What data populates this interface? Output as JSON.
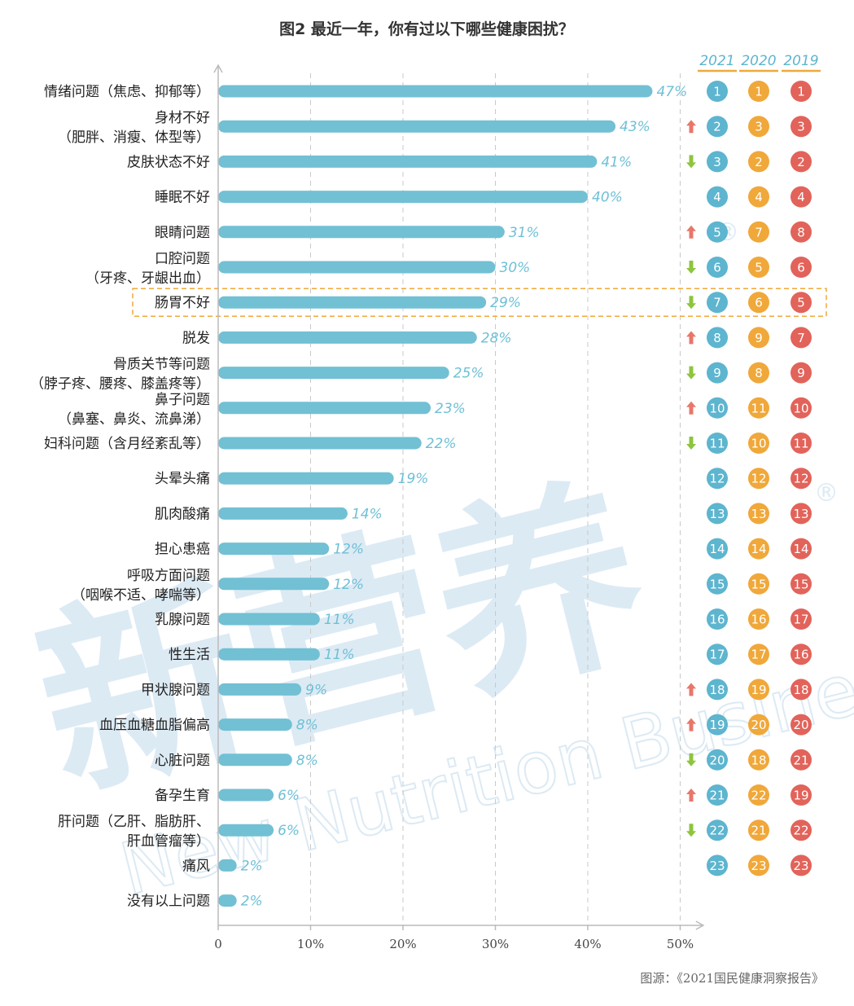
{
  "title": "图2 最近一年，你有过以下哪些健康困扰？",
  "source": "图源：《2021国民健康洞察报告》",
  "watermark": {
    "cn": "新营养",
    "en": "New Nutrition Business",
    "mark": "®"
  },
  "years": [
    "2021",
    "2020",
    "2019"
  ],
  "colors": {
    "bar": "#72c0d4",
    "value_label": "#6fc0d6",
    "rank_2021": "#5db5cf",
    "rank_2020": "#f0a83a",
    "rank_2019": "#e2635a",
    "header_underline": "#f0a83a",
    "arrow_up": "#e8776a",
    "arrow_down": "#8fc43d",
    "highlight_box": "#f0a83a",
    "grid": "#c9c9c9",
    "axis": "#bbbbbb"
  },
  "chart_data": {
    "type": "bar",
    "orientation": "horizontal",
    "title": "图2 最近一年，你有过以下哪些健康困扰？",
    "xlim": [
      0,
      50
    ],
    "xticks": [
      "0",
      "10%",
      "20%",
      "30%",
      "40%",
      "50%"
    ],
    "grid": "vertical dashed",
    "categories": [
      [
        "情绪问题（焦虑、抑郁等）"
      ],
      [
        "身材不好",
        "（肥胖、消瘦、体型等）"
      ],
      [
        "皮肤状态不好"
      ],
      [
        "睡眠不好"
      ],
      [
        "眼睛问题"
      ],
      [
        "口腔问题",
        "（牙疼、牙龈出血）"
      ],
      [
        "肠胃不好"
      ],
      [
        "脱发"
      ],
      [
        "骨质关节等问题",
        "（脖子疼、腰疼、膝盖疼等）"
      ],
      [
        "鼻子问题",
        "（鼻塞、鼻炎、流鼻涕）"
      ],
      [
        "妇科问题（含月经紊乱等）"
      ],
      [
        "头晕头痛"
      ],
      [
        "肌肉酸痛"
      ],
      [
        "担心患癌"
      ],
      [
        "呼吸方面问题",
        "（咽喉不适、哮喘等）"
      ],
      [
        "乳腺问题"
      ],
      [
        "性生活"
      ],
      [
        "甲状腺问题"
      ],
      [
        "血压血糖血脂偏高"
      ],
      [
        "心脏问题"
      ],
      [
        "备孕生育"
      ],
      [
        "肝问题（乙肝、脂肪肝、",
        "肝血管瘤等）"
      ],
      [
        "痛风"
      ],
      [
        "没有以上问题"
      ]
    ],
    "values": [
      47,
      43,
      41,
      40,
      31,
      30,
      29,
      28,
      25,
      23,
      22,
      19,
      14,
      12,
      12,
      11,
      11,
      9,
      8,
      8,
      6,
      6,
      2,
      2
    ],
    "value_labels": [
      "47%",
      "43%",
      "41%",
      "40%",
      "31%",
      "30%",
      "29%",
      "28%",
      "25%",
      "23%",
      "22%",
      "19%",
      "14%",
      "12%",
      "12%",
      "11%",
      "11%",
      "9%",
      "8%",
      "8%",
      "6%",
      "6%",
      "2%",
      "2%"
    ],
    "trend": [
      "",
      "up",
      "down",
      "",
      "up",
      "down",
      "down",
      "up",
      "down",
      "up",
      "down",
      "",
      "",
      "",
      "",
      "",
      "",
      "up",
      "up",
      "down",
      "up",
      "down",
      "",
      ""
    ],
    "ranks": [
      [
        "1",
        "1",
        "1"
      ],
      [
        "2",
        "3",
        "3"
      ],
      [
        "3",
        "2",
        "2"
      ],
      [
        "4",
        "4",
        "4"
      ],
      [
        "5",
        "7",
        "8"
      ],
      [
        "6",
        "5",
        "6"
      ],
      [
        "7",
        "6",
        "5"
      ],
      [
        "8",
        "9",
        "7"
      ],
      [
        "9",
        "8",
        "9"
      ],
      [
        "10",
        "11",
        "10"
      ],
      [
        "11",
        "10",
        "11"
      ],
      [
        "12",
        "12",
        "12"
      ],
      [
        "13",
        "13",
        "13"
      ],
      [
        "14",
        "14",
        "14"
      ],
      [
        "15",
        "15",
        "15"
      ],
      [
        "16",
        "16",
        "17"
      ],
      [
        "17",
        "17",
        "16"
      ],
      [
        "18",
        "19",
        "18"
      ],
      [
        "19",
        "20",
        "20"
      ],
      [
        "20",
        "18",
        "21"
      ],
      [
        "21",
        "22",
        "19"
      ],
      [
        "22",
        "21",
        "22"
      ],
      [
        "23",
        "23",
        "23"
      ],
      [
        "",
        "",
        ""
      ]
    ],
    "highlighted_index": 6
  }
}
